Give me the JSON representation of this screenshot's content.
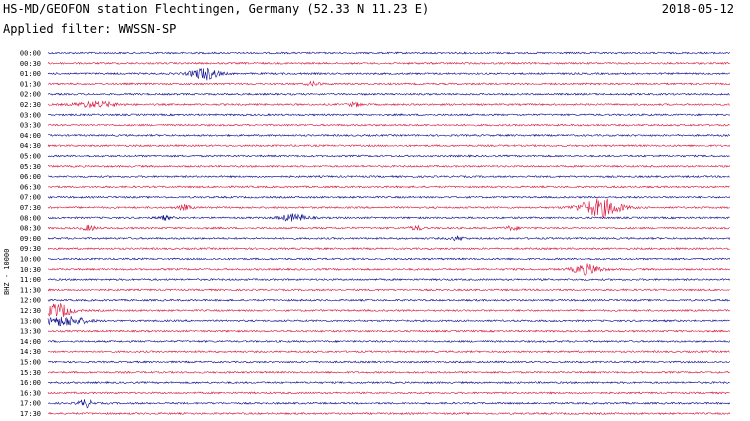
{
  "header": {
    "title": "HS-MD/GEOFON station Flechtingen, Germany (52.33 N 11.23 E)",
    "date": "2018-05-12",
    "filter": "Applied filter: WWSSN-SP"
  },
  "chart_data": {
    "type": "line",
    "title": "HS-MD/GEOFON station Flechtingen, Germany (52.33 N 11.23 E)",
    "ylabel": "BHZ - 10000",
    "trace_colors": [
      "#0a0a8c",
      "#d8143c"
    ],
    "rows": [
      "00:00",
      "00:30",
      "01:00",
      "01:30",
      "02:00",
      "02:30",
      "03:00",
      "03:30",
      "04:00",
      "04:30",
      "05:00",
      "05:30",
      "06:00",
      "06:30",
      "07:00",
      "07:30",
      "08:00",
      "08:30",
      "09:00",
      "09:30",
      "10:00",
      "10:30",
      "11:00",
      "11:30",
      "12:00",
      "12:30",
      "13:00",
      "13:30",
      "14:00",
      "14:30",
      "15:00",
      "15:30",
      "16:00",
      "16:30",
      "17:00",
      "17:30"
    ],
    "events": [
      {
        "row": "01:00",
        "at": 0.23,
        "amp": 6,
        "width": 0.02
      },
      {
        "row": "01:30",
        "at": 0.39,
        "amp": 2,
        "width": 0.01
      },
      {
        "row": "02:30",
        "at": 0.07,
        "amp": 3,
        "width": 0.03
      },
      {
        "row": "02:30",
        "at": 0.45,
        "amp": 2,
        "width": 0.01
      },
      {
        "row": "07:30",
        "at": 0.81,
        "amp": 9,
        "width": 0.03
      },
      {
        "row": "07:30",
        "at": 0.2,
        "amp": 2.5,
        "width": 0.01
      },
      {
        "row": "08:00",
        "at": 0.36,
        "amp": 3.5,
        "width": 0.02
      },
      {
        "row": "08:00",
        "at": 0.17,
        "amp": 2,
        "width": 0.01
      },
      {
        "row": "08:30",
        "at": 0.06,
        "amp": 2.5,
        "width": 0.01
      },
      {
        "row": "08:30",
        "at": 0.54,
        "amp": 2,
        "width": 0.01
      },
      {
        "row": "08:30",
        "at": 0.68,
        "amp": 2,
        "width": 0.01
      },
      {
        "row": "09:00",
        "at": 0.6,
        "amp": 2,
        "width": 0.01
      },
      {
        "row": "10:30",
        "at": 0.79,
        "amp": 5,
        "width": 0.02
      },
      {
        "row": "12:30",
        "at": 0.015,
        "amp": 7,
        "width": 0.02
      },
      {
        "row": "13:00",
        "at": 0.025,
        "amp": 5,
        "width": 0.03
      },
      {
        "row": "17:00",
        "at": 0.055,
        "amp": 4,
        "width": 0.01
      }
    ]
  }
}
